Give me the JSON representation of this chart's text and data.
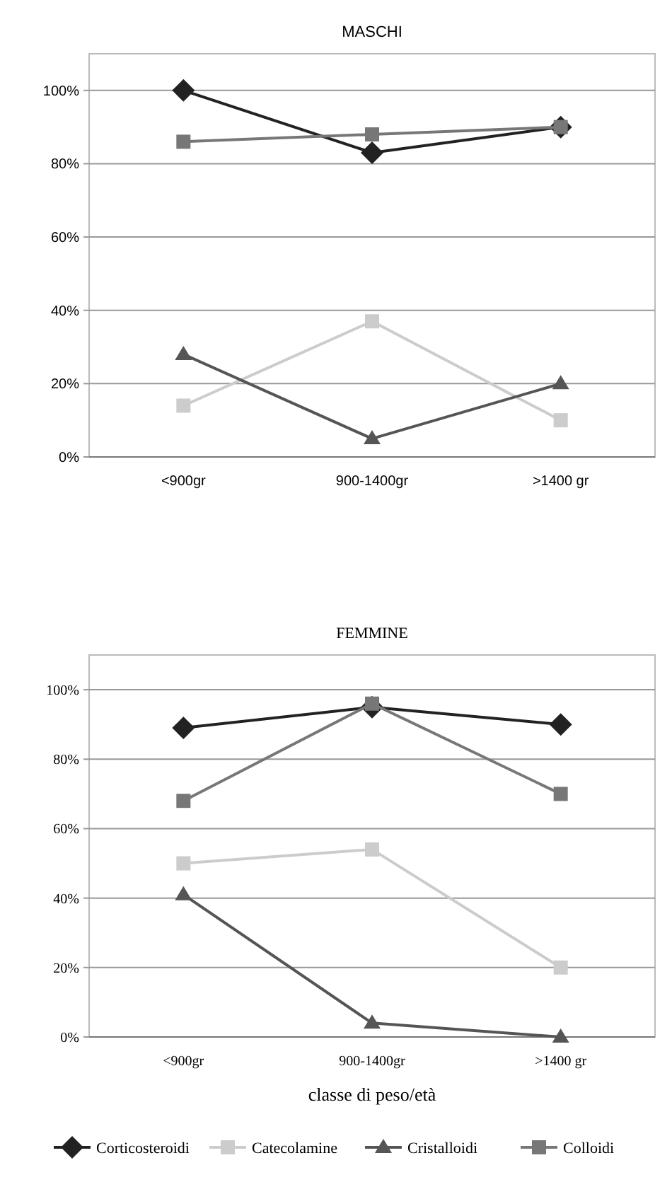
{
  "chart_data": [
    {
      "type": "line",
      "title": "MASCHI",
      "categories": [
        "<900gr",
        "900-1400gr",
        ">1400 gr"
      ],
      "ylim": [
        0,
        110
      ],
      "yticks": [
        {
          "value": 0,
          "label": "0%"
        },
        {
          "value": 20,
          "label": "20%"
        },
        {
          "value": 40,
          "label": "40%"
        },
        {
          "value": 60,
          "label": "60%"
        },
        {
          "value": 80,
          "label": "80%"
        },
        {
          "value": 100,
          "label": "100%"
        }
      ],
      "grid": "y",
      "legend": false,
      "series": [
        {
          "color": "#222222",
          "marker": "diamond",
          "values": [
            100,
            83,
            90
          ]
        },
        {
          "color": "#cccccc",
          "marker": "square",
          "values": [
            14,
            37,
            10
          ]
        },
        {
          "color": "#555555",
          "marker": "triangle",
          "values": [
            28,
            5,
            20
          ]
        },
        {
          "color": "#777777",
          "marker": "square",
          "values": [
            86,
            88,
            90
          ]
        }
      ]
    },
    {
      "type": "line",
      "title": "FEMMINE",
      "xlabel": "classe di peso/età",
      "categories": [
        "<900gr",
        "900-1400gr",
        ">1400 gr"
      ],
      "ylim": [
        0,
        110
      ],
      "yticks": [
        {
          "value": 0,
          "label": "0%"
        },
        {
          "value": 20,
          "label": "20%"
        },
        {
          "value": 40,
          "label": "40%"
        },
        {
          "value": 60,
          "label": "60%"
        },
        {
          "value": 80,
          "label": "80%"
        },
        {
          "value": 100,
          "label": "100%"
        }
      ],
      "grid": "y",
      "legend": "bottom",
      "series": [
        {
          "name": "Corticosteroidi",
          "color": "#222222",
          "marker": "diamond",
          "values": [
            89,
            95,
            90
          ]
        },
        {
          "name": "Catecolamine",
          "color": "#cccccc",
          "marker": "square",
          "values": [
            50,
            54,
            20
          ]
        },
        {
          "name": "Cristalloidi",
          "color": "#555555",
          "marker": "triangle",
          "values": [
            41,
            4,
            0
          ]
        },
        {
          "name": "Colloidi",
          "color": "#777777",
          "marker": "square",
          "values": [
            68,
            96,
            70
          ]
        }
      ]
    }
  ]
}
